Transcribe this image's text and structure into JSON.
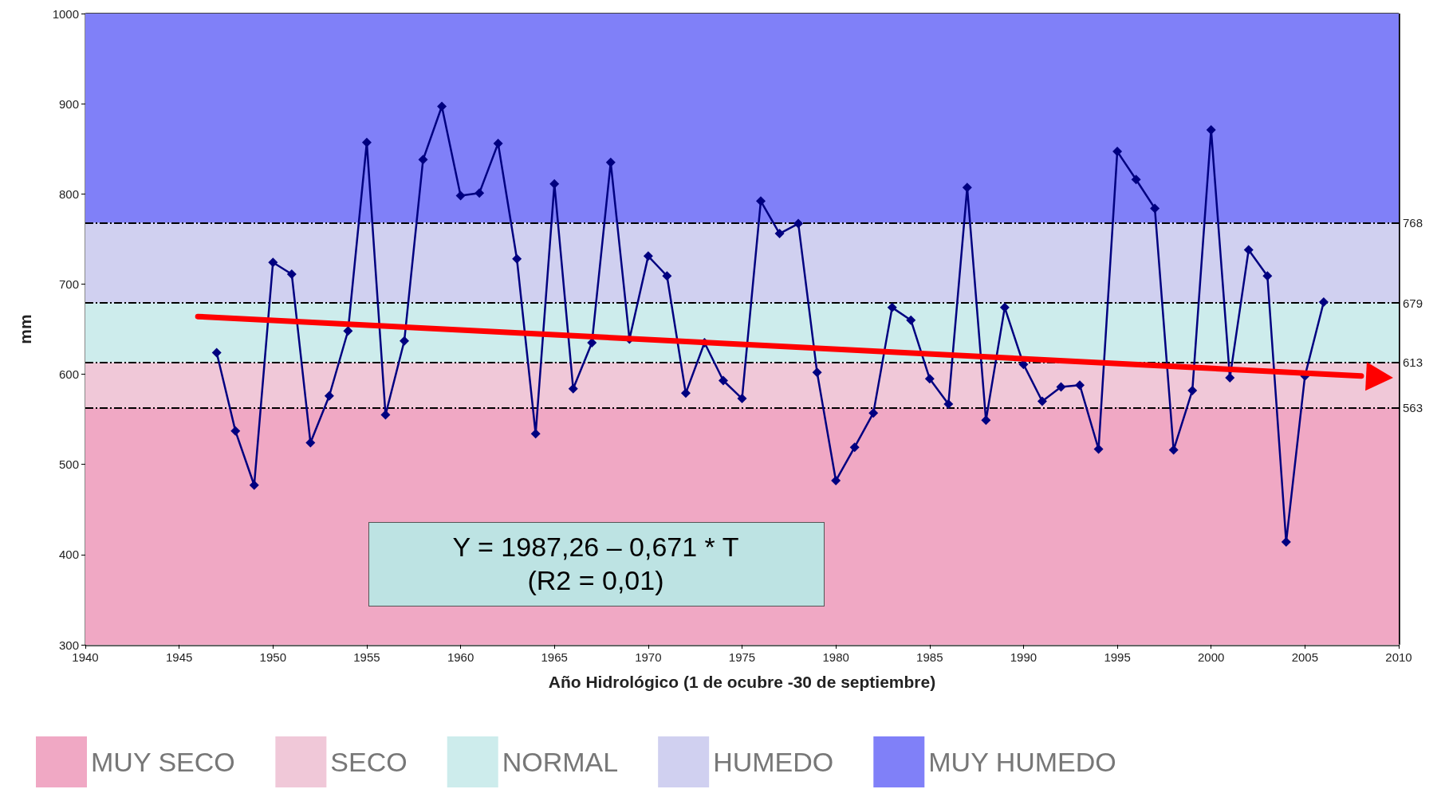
{
  "chart_data": {
    "type": "line",
    "xlabel": "Año Hidrológico (1 de ocubre -30 de septiembre)",
    "ylabel": "mm",
    "x": [
      1947,
      1948,
      1949,
      1950,
      1951,
      1952,
      1953,
      1954,
      1955,
      1956,
      1957,
      1958,
      1959,
      1960,
      1961,
      1962,
      1963,
      1964,
      1965,
      1966,
      1967,
      1968,
      1969,
      1970,
      1971,
      1972,
      1973,
      1974,
      1975,
      1976,
      1977,
      1978,
      1979,
      1980,
      1981,
      1982,
      1983,
      1984,
      1985,
      1986,
      1987,
      1988,
      1989,
      1990,
      1991,
      1992,
      1993,
      1994,
      1995,
      1996,
      1997,
      1998,
      1999,
      2000,
      2001,
      2002,
      2003,
      2004,
      2005,
      2006
    ],
    "series": [
      {
        "color": "#000080",
        "marker": "diamond",
        "values": [
          624,
          537,
          477,
          724,
          711,
          524,
          576,
          648,
          857,
          555,
          637,
          838,
          897,
          798,
          801,
          856,
          728,
          534,
          811,
          584,
          635,
          835,
          639,
          731,
          709,
          579,
          635,
          593,
          573,
          792,
          756,
          767,
          602,
          482,
          519,
          557,
          674,
          660,
          595,
          567,
          807,
          549,
          674,
          611,
          570,
          586,
          588,
          517,
          847,
          816,
          784,
          516,
          582,
          871,
          596,
          738,
          709,
          414,
          598,
          680
        ]
      },
      {
        "color": "#ff0000",
        "marker": "none",
        "x": [
          1946,
          2008
        ],
        "values": [
          664,
          598
        ]
      }
    ],
    "xlim": [
      1940,
      2010
    ],
    "xticks": [
      1940,
      1945,
      1950,
      1955,
      1960,
      1965,
      1970,
      1975,
      1980,
      1985,
      1990,
      1995,
      2000,
      2005,
      2010
    ],
    "ylim": [
      300,
      1000
    ],
    "yticks": [
      300,
      400,
      500,
      600,
      700,
      800,
      900,
      1000
    ],
    "grid": true,
    "legend": "bottom",
    "bands": [
      {
        "axis": "y",
        "from": 300,
        "to": 563,
        "label": "MUY SECO",
        "color": "#f0a8c4"
      },
      {
        "axis": "y",
        "from": 563,
        "to": 613,
        "label": "SECO",
        "color": "#f0c8d8"
      },
      {
        "axis": "y",
        "from": 613,
        "to": 679,
        "label": "NORMAL",
        "color": "#cdecec"
      },
      {
        "axis": "y",
        "from": 679,
        "to": 768,
        "label": "HUMEDO",
        "color": "#d0d0f0"
      },
      {
        "axis": "y",
        "from": 768,
        "to": 1000,
        "label": "MUY HUMEDO",
        "color": "#8080f8"
      }
    ],
    "ref_lines": [
      {
        "axis": "y",
        "value": 768,
        "label": "768",
        "line_style": "dashed"
      },
      {
        "axis": "y",
        "value": 679,
        "label": "679",
        "line_style": "dashed"
      },
      {
        "axis": "y",
        "value": 613,
        "label": "613",
        "line_style": "dashed"
      },
      {
        "axis": "y",
        "value": 563,
        "label": "563",
        "line_style": "dashed"
      }
    ],
    "annotations": [
      "Y = 1987,26 – 0,671 * T\n(R2 = 0,01)"
    ]
  }
}
